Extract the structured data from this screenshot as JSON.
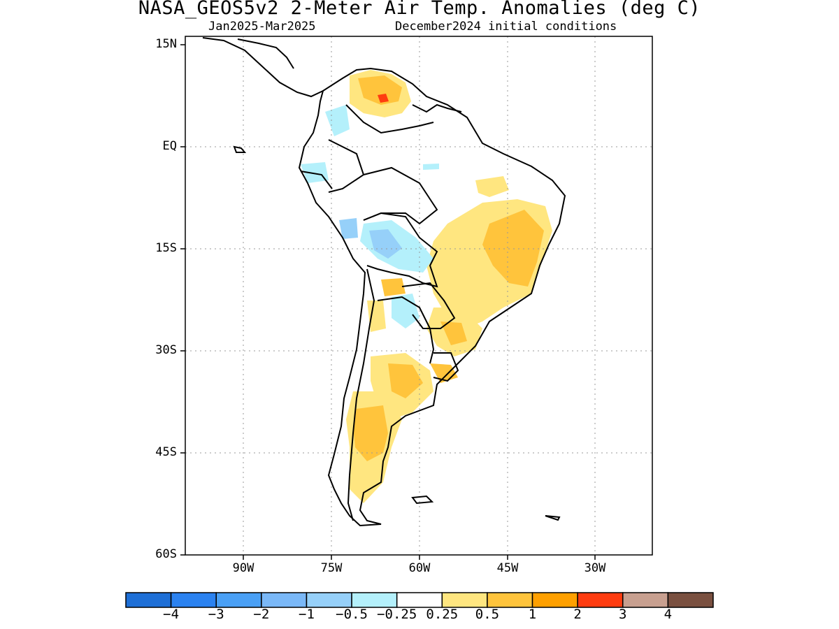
{
  "header": {
    "title": "NASA_GEOS5v2 2-Meter Air Temp. Anomalies (deg C)",
    "period": "Jan2025-Mar2025",
    "init": "December2024 initial conditions"
  },
  "map": {
    "lat_labels": [
      "15N",
      "EQ",
      "15S",
      "30S",
      "45S",
      "60S"
    ],
    "lon_labels": [
      "90W",
      "75W",
      "60W",
      "45W",
      "30W"
    ]
  },
  "colorbar": {
    "colors": [
      "#1e6fd6",
      "#2b82f0",
      "#4aa0f5",
      "#7ab8f7",
      "#96d0f9",
      "#b4f0fb",
      "#ffffff",
      "#ffe680",
      "#ffc43c",
      "#ffa000",
      "#ff3c10",
      "#c8a090",
      "#7a5040"
    ],
    "labels": [
      "−4",
      "−3",
      "−2",
      "−1",
      "−0.5",
      "−0.25",
      "0.25",
      "0.5",
      "1",
      "2",
      "3",
      "4"
    ]
  }
}
